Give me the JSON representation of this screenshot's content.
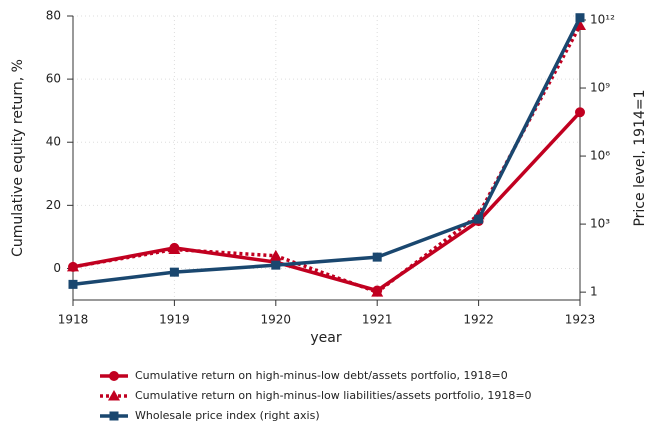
{
  "chart_data": {
    "type": "line",
    "x": [
      1918,
      1919,
      1920,
      1921,
      1922,
      1923
    ],
    "xlim": [
      1918,
      1923
    ],
    "xticks": [
      1918,
      1919,
      1920,
      1921,
      1922,
      1923
    ],
    "xlabel": "year",
    "ylabel": "Cumulative equity return, %",
    "y2label": "Price level, 1914=1",
    "ylim": [
      -10,
      80
    ],
    "yticks": [
      0,
      20,
      40,
      60,
      80
    ],
    "y2lim": [
      0.45,
      1500000000000.0
    ],
    "y2log": true,
    "y2ticks": [
      1,
      {
        "value": 1000,
        "label": "10³"
      },
      {
        "value": 1000000,
        "label": "10⁶"
      },
      {
        "value": 1000000000,
        "label": "10⁹"
      },
      {
        "value": 1000000000000,
        "label": "10¹²"
      }
    ],
    "grid": true,
    "series": [
      {
        "name": "Cumulative return on high-minus-low debt/assets portfolio, 1918=0",
        "color": "#c10020",
        "marker": "circle",
        "dash": false,
        "values": [
          0.5,
          6.5,
          2,
          -7,
          15,
          49.5
        ]
      },
      {
        "name": "Cumulative return on high-minus-low liabilities/assets portfolio, 1918=0",
        "color": "#c10020",
        "marker": "triangle",
        "dash": true,
        "values": [
          0.5,
          6,
          4,
          -7.5,
          17,
          77
        ]
      },
      {
        "name": "Wholesale price index (right axis)",
        "color": "#1a476f",
        "marker": "square",
        "dash": false,
        "axis": "y2",
        "values": [
          2.2,
          7.6,
          15.5,
          35,
          1660,
          1260000000000.0
        ]
      }
    ]
  }
}
